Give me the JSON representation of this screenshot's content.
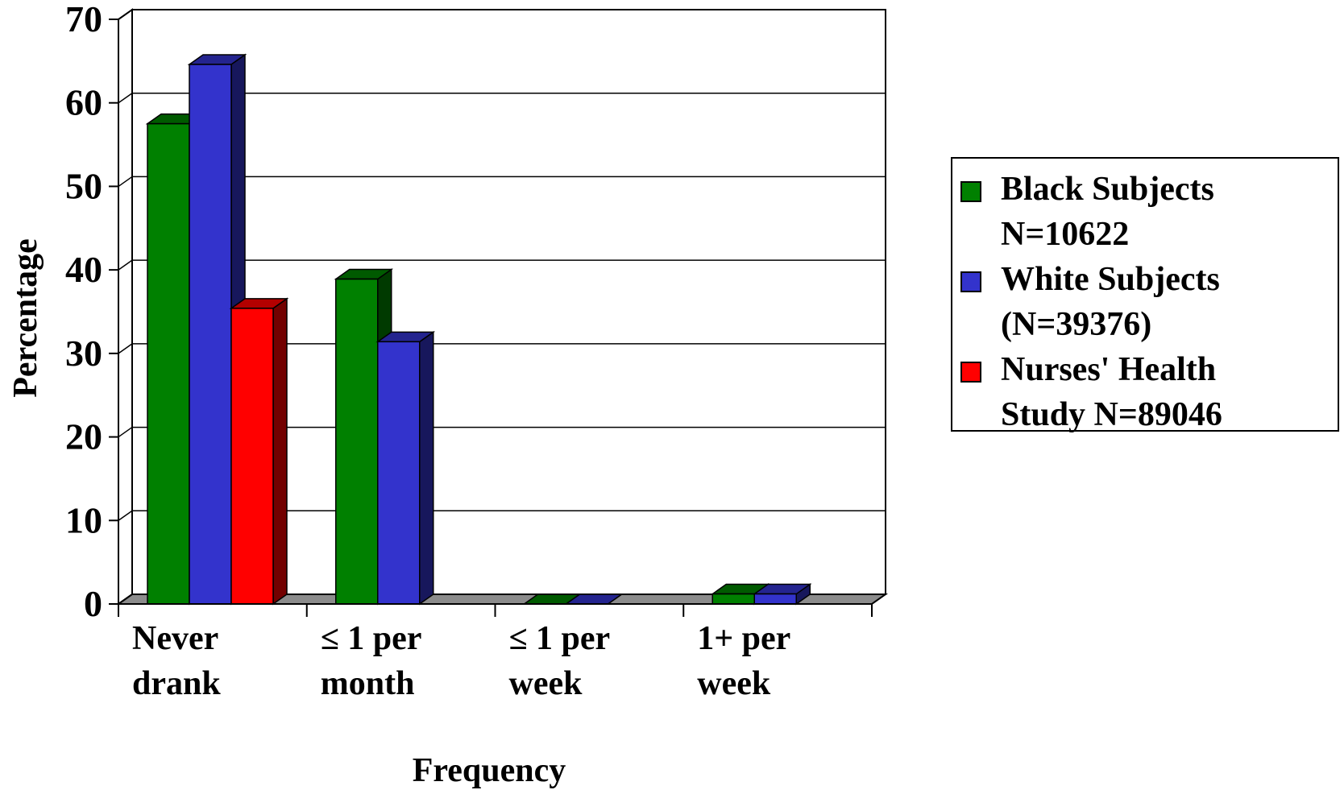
{
  "chart_data": {
    "type": "bar",
    "title": "",
    "xlabel": "Frequency",
    "ylabel": "Percentage",
    "ylim": [
      0,
      70
    ],
    "yticks": [
      "0",
      "10",
      "20",
      "30",
      "40",
      "50",
      "60",
      "70"
    ],
    "grid": true,
    "legend_position": "right",
    "categories": [
      [
        "Never",
        "drank"
      ],
      [
        "≤ 1 per",
        "month"
      ],
      [
        "≤ 1 per",
        "week"
      ],
      [
        "1+ per",
        "week"
      ]
    ],
    "series": [
      {
        "name": "Black Subjects N=10622",
        "color": "#008000",
        "values": [
          57.5,
          38.9,
          0,
          1.2
        ]
      },
      {
        "name": "White Subjects (N=39376)",
        "color": "#3333cc",
        "values": [
          64.6,
          31.4,
          0,
          1.2
        ]
      },
      {
        "name": "Nurses' Health Study N=89046",
        "color": "#ff0000",
        "values": [
          35.4,
          null,
          null,
          null
        ]
      }
    ]
  }
}
